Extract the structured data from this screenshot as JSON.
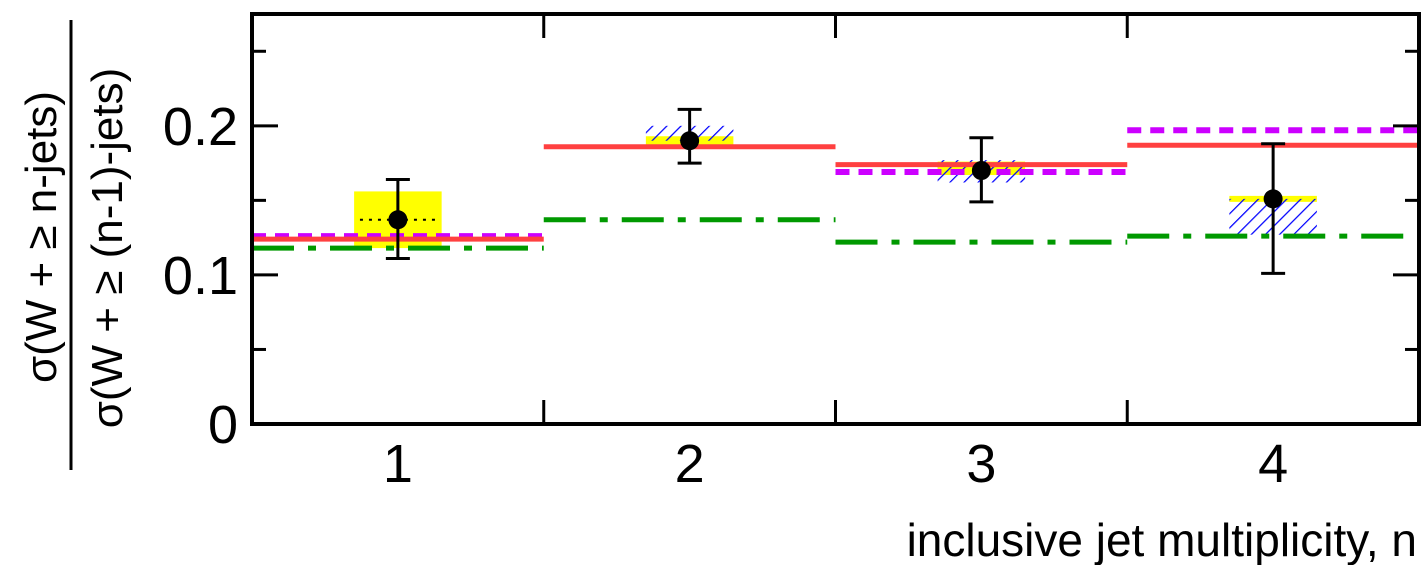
{
  "chart_data": {
    "type": "line",
    "xlabel": "inclusive jet multiplicity, n",
    "ylabel": {
      "numerator": "σ(W + ≥ n-jets)",
      "denominator": "σ(W + ≥ (n-1)-jets)"
    },
    "xlim": [
      0.5,
      4.5
    ],
    "ylim": [
      0,
      0.275
    ],
    "x_ticks": [
      "1",
      "2",
      "3",
      "4"
    ],
    "y_ticks": [
      "0",
      "0.1",
      "0.2"
    ],
    "y_tick_values": [
      0,
      0.1,
      0.2
    ],
    "grid": false,
    "legend": "none",
    "data": {
      "x": [
        1,
        2,
        3,
        4
      ],
      "y": [
        0.137,
        0.19,
        0.17,
        0.151
      ],
      "yerr_low": [
        0.026,
        0.015,
        0.021,
        0.05
      ],
      "yerr_high": [
        0.027,
        0.021,
        0.022,
        0.037
      ],
      "color": "#000000"
    },
    "bands": [
      {
        "x": 1,
        "kind": "yellow",
        "low": 0.118,
        "high": 0.156
      },
      {
        "x": 2,
        "kind": "yellow",
        "low": 0.187,
        "high": 0.193
      },
      {
        "x": 2,
        "kind": "hatched",
        "low": 0.19,
        "high": 0.2
      },
      {
        "x": 3,
        "kind": "yellow",
        "low": 0.167,
        "high": 0.176
      },
      {
        "x": 3,
        "kind": "hatched",
        "low": 0.162,
        "high": 0.177
      },
      {
        "x": 4,
        "kind": "yellow",
        "low": 0.149,
        "high": 0.153
      },
      {
        "x": 4,
        "kind": "hatched",
        "low": 0.127,
        "high": 0.151
      }
    ],
    "band_colors": {
      "yellow": "#ffff00",
      "hatched": "#0000ff"
    },
    "series": [
      {
        "style": "solid",
        "color": "#ff4040",
        "values": [
          0.124,
          0.186,
          0.174,
          0.187
        ]
      },
      {
        "style": "dashed",
        "color": "#cc00ff",
        "values": [
          0.126,
          null,
          0.169,
          0.197
        ]
      },
      {
        "style": "dashdot",
        "color": "#009900",
        "values": [
          0.118,
          0.137,
          0.122,
          0.126
        ]
      }
    ],
    "extra_marks": [
      {
        "x": 1,
        "style": "dotted",
        "color": "#000000",
        "value": 0.137
      }
    ]
  }
}
